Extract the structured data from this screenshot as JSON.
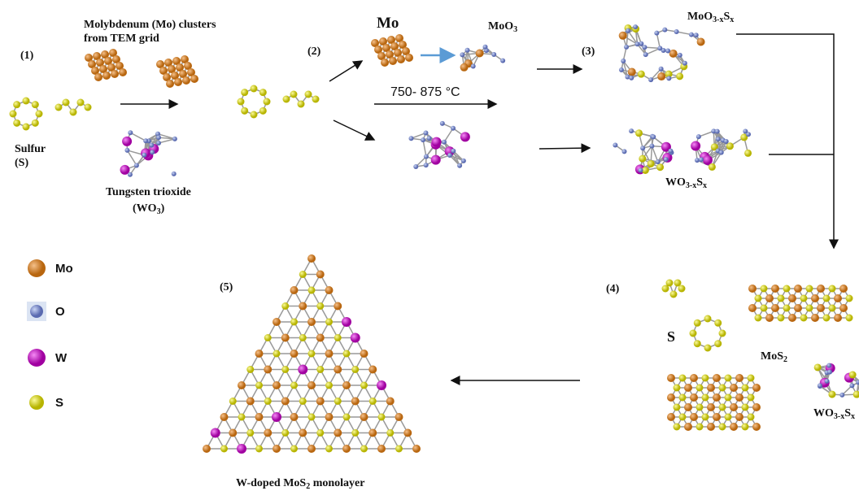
{
  "steps": [
    "(1)",
    "(2)",
    "(3)",
    "(4)",
    "(5)"
  ],
  "mo_clusters": [
    "Molybdenum (Mo) clusters",
    "from TEM grid"
  ],
  "sulfur": [
    "Sulfur",
    "(S)"
  ],
  "tungsten": {
    "line1": "Tungsten trioxide",
    "parts": [
      "(WO",
      "3",
      ")"
    ]
  },
  "mo": "Mo",
  "moo3": {
    "parts": [
      "MoO",
      "3"
    ]
  },
  "temperature": "750- 875 °C",
  "moo3xsx": {
    "parts": [
      "MoO",
      "3-x",
      "S",
      "x"
    ]
  },
  "wo3xsx": {
    "parts": [
      "WO",
      "3-x",
      "S",
      "x"
    ]
  },
  "s_label": "S",
  "mos2": {
    "parts": [
      "MoS",
      "2"
    ]
  },
  "wo3xsx_2": {
    "parts": [
      "WO",
      "3-x",
      "S",
      "x"
    ]
  },
  "final": {
    "parts": [
      "W-doped MoS",
      "2",
      " monolayer"
    ]
  },
  "legend": [
    "Mo",
    "O",
    "W",
    "S"
  ]
}
